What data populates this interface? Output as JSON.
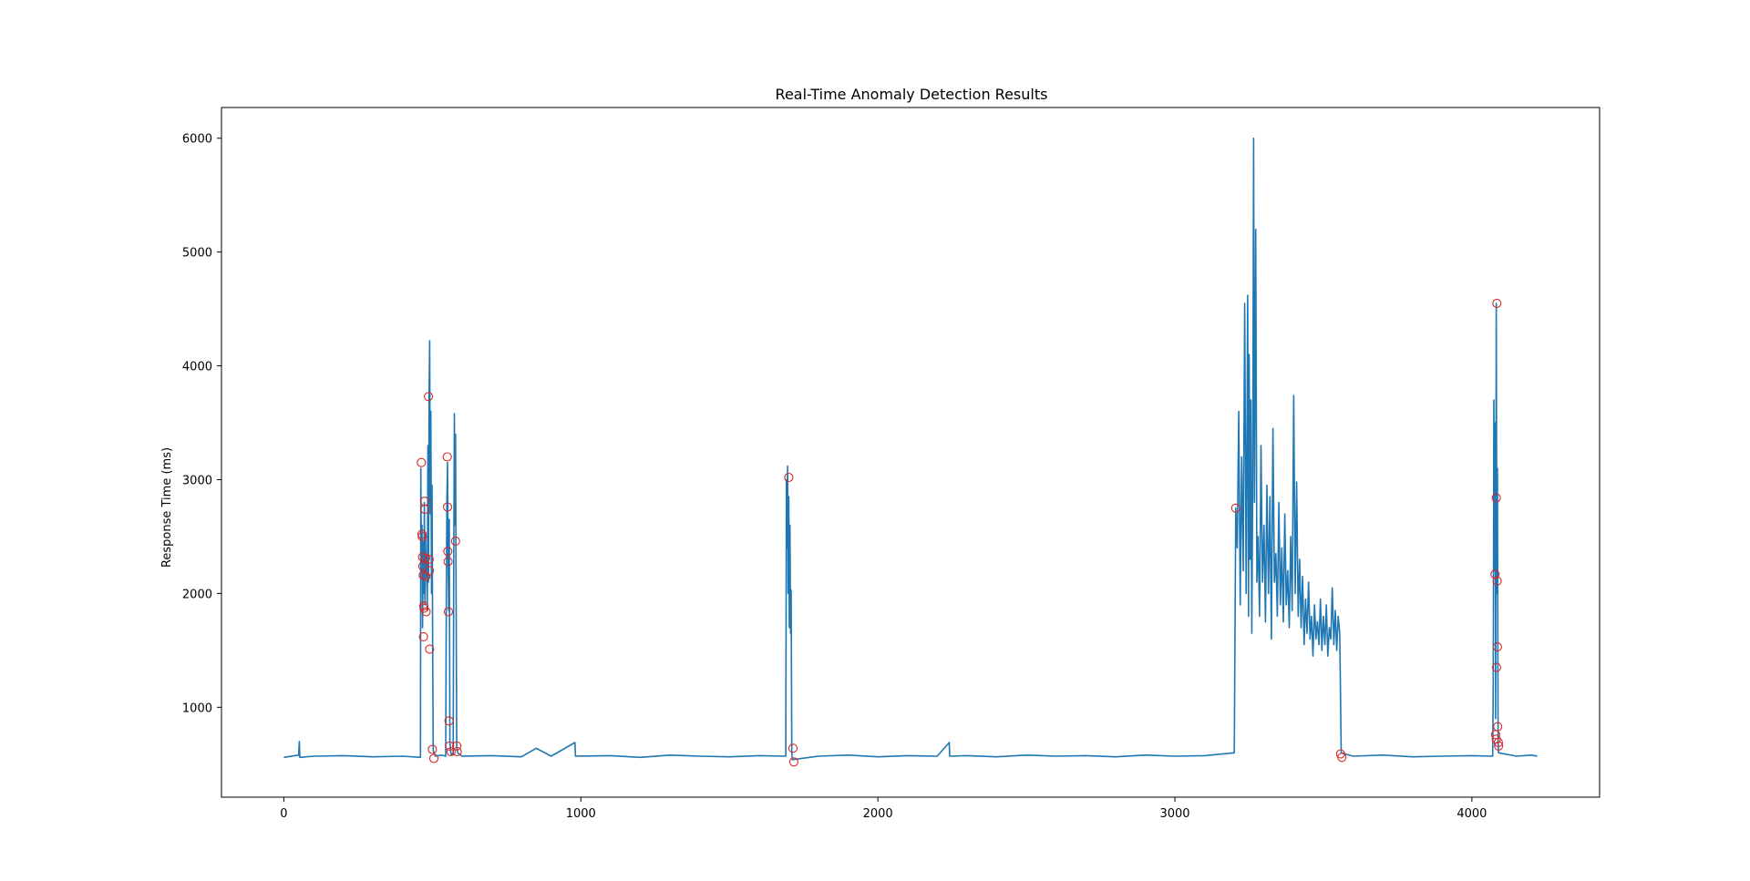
{
  "chart_data": {
    "type": "line",
    "title": "Real-Time Anomaly Detection Results",
    "xlabel": "",
    "ylabel": "Response Time (ms)",
    "xlim": [
      -210,
      4430
    ],
    "ylim": [
      210,
      6270
    ],
    "x_ticks": [
      0,
      1000,
      2000,
      3000,
      4000
    ],
    "y_ticks": [
      1000,
      2000,
      3000,
      4000,
      5000,
      6000
    ],
    "grid": false,
    "colors": {
      "line": "#1f77b4",
      "anomaly": "#d62728"
    },
    "series": [
      {
        "type": "line",
        "points": [
          [
            0,
            560
          ],
          [
            50,
            580
          ],
          [
            52,
            700
          ],
          [
            54,
            560
          ],
          [
            100,
            570
          ],
          [
            200,
            575
          ],
          [
            300,
            565
          ],
          [
            400,
            570
          ],
          [
            460,
            560
          ],
          [
            461,
            3100
          ],
          [
            463,
            2200
          ],
          [
            465,
            2600
          ],
          [
            467,
            1700
          ],
          [
            469,
            2450
          ],
          [
            471,
            2000
          ],
          [
            473,
            2800
          ],
          [
            475,
            1900
          ],
          [
            477,
            2500
          ],
          [
            479,
            2150
          ],
          [
            481,
            2300
          ],
          [
            483,
            1850
          ],
          [
            485,
            3300
          ],
          [
            487,
            2100
          ],
          [
            489,
            3750
          ],
          [
            491,
            4220
          ],
          [
            493,
            2700
          ],
          [
            495,
            3600
          ],
          [
            497,
            2000
          ],
          [
            499,
            2950
          ],
          [
            501,
            1500
          ],
          [
            503,
            620
          ],
          [
            510,
            570
          ],
          [
            530,
            580
          ],
          [
            545,
            570
          ],
          [
            547,
            2000
          ],
          [
            549,
            2800
          ],
          [
            551,
            3150
          ],
          [
            553,
            2300
          ],
          [
            555,
            1850
          ],
          [
            557,
            2650
          ],
          [
            559,
            700
          ],
          [
            562,
            600
          ],
          [
            565,
            580
          ],
          [
            570,
            600
          ],
          [
            572,
            2200
          ],
          [
            574,
            3580
          ],
          [
            576,
            2600
          ],
          [
            578,
            3400
          ],
          [
            580,
            2000
          ],
          [
            582,
            650
          ],
          [
            585,
            600
          ],
          [
            600,
            570
          ],
          [
            700,
            575
          ],
          [
            800,
            565
          ],
          [
            850,
            640
          ],
          [
            900,
            570
          ],
          [
            980,
            690
          ],
          [
            982,
            570
          ],
          [
            1100,
            575
          ],
          [
            1200,
            560
          ],
          [
            1300,
            580
          ],
          [
            1400,
            570
          ],
          [
            1500,
            565
          ],
          [
            1600,
            575
          ],
          [
            1690,
            570
          ],
          [
            1692,
            3000
          ],
          [
            1694,
            2400
          ],
          [
            1696,
            3120
          ],
          [
            1698,
            2000
          ],
          [
            1700,
            2850
          ],
          [
            1702,
            1700
          ],
          [
            1704,
            2600
          ],
          [
            1706,
            1650
          ],
          [
            1708,
            2030
          ],
          [
            1710,
            600
          ],
          [
            1712,
            540
          ],
          [
            1800,
            570
          ],
          [
            1900,
            580
          ],
          [
            2000,
            565
          ],
          [
            2100,
            575
          ],
          [
            2200,
            570
          ],
          [
            2240,
            690
          ],
          [
            2242,
            570
          ],
          [
            2300,
            575
          ],
          [
            2400,
            565
          ],
          [
            2500,
            580
          ],
          [
            2600,
            570
          ],
          [
            2700,
            575
          ],
          [
            2800,
            565
          ],
          [
            2900,
            580
          ],
          [
            3000,
            570
          ],
          [
            3100,
            575
          ],
          [
            3200,
            600
          ],
          [
            3205,
            2750
          ],
          [
            3210,
            2400
          ],
          [
            3215,
            3600
          ],
          [
            3220,
            1900
          ],
          [
            3225,
            3200
          ],
          [
            3230,
            2200
          ],
          [
            3235,
            4550
          ],
          [
            3240,
            2000
          ],
          [
            3245,
            4620
          ],
          [
            3248,
            1800
          ],
          [
            3250,
            4100
          ],
          [
            3253,
            2300
          ],
          [
            3256,
            3700
          ],
          [
            3259,
            1650
          ],
          [
            3262,
            3000
          ],
          [
            3265,
            6000
          ],
          [
            3268,
            2800
          ],
          [
            3272,
            5200
          ],
          [
            3276,
            2100
          ],
          [
            3280,
            2500
          ],
          [
            3285,
            1800
          ],
          [
            3290,
            3300
          ],
          [
            3295,
            2100
          ],
          [
            3300,
            2600
          ],
          [
            3305,
            1750
          ],
          [
            3310,
            2950
          ],
          [
            3315,
            2000
          ],
          [
            3320,
            2850
          ],
          [
            3325,
            1600
          ],
          [
            3330,
            3450
          ],
          [
            3335,
            2100
          ],
          [
            3340,
            2350
          ],
          [
            3345,
            1800
          ],
          [
            3350,
            2800
          ],
          [
            3355,
            1900
          ],
          [
            3360,
            2400
          ],
          [
            3365,
            1750
          ],
          [
            3370,
            2700
          ],
          [
            3375,
            1900
          ],
          [
            3380,
            2200
          ],
          [
            3385,
            1700
          ],
          [
            3390,
            2500
          ],
          [
            3395,
            1850
          ],
          [
            3400,
            3740
          ],
          [
            3405,
            2000
          ],
          [
            3410,
            2980
          ],
          [
            3415,
            1800
          ],
          [
            3420,
            2300
          ],
          [
            3425,
            1700
          ],
          [
            3430,
            2150
          ],
          [
            3435,
            1550
          ],
          [
            3440,
            1950
          ],
          [
            3445,
            1650
          ],
          [
            3450,
            2100
          ],
          [
            3455,
            1600
          ],
          [
            3460,
            1800
          ],
          [
            3465,
            1450
          ],
          [
            3470,
            1900
          ],
          [
            3475,
            1600
          ],
          [
            3480,
            1750
          ],
          [
            3485,
            1550
          ],
          [
            3490,
            1950
          ],
          [
            3495,
            1500
          ],
          [
            3500,
            1800
          ],
          [
            3505,
            1550
          ],
          [
            3510,
            1900
          ],
          [
            3515,
            1450
          ],
          [
            3520,
            1700
          ],
          [
            3525,
            1600
          ],
          [
            3530,
            2050
          ],
          [
            3535,
            1550
          ],
          [
            3540,
            1850
          ],
          [
            3545,
            1500
          ],
          [
            3550,
            1800
          ],
          [
            3555,
            1650
          ],
          [
            3560,
            600
          ],
          [
            3600,
            570
          ],
          [
            3700,
            580
          ],
          [
            3800,
            565
          ],
          [
            3900,
            570
          ],
          [
            4000,
            575
          ],
          [
            4070,
            570
          ],
          [
            4072,
            1200
          ],
          [
            4074,
            3700
          ],
          [
            4076,
            2200
          ],
          [
            4078,
            3500
          ],
          [
            4080,
            900
          ],
          [
            4082,
            4550
          ],
          [
            4084,
            2000
          ],
          [
            4086,
            3100
          ],
          [
            4088,
            700
          ],
          [
            4090,
            600
          ],
          [
            4150,
            570
          ],
          [
            4200,
            580
          ],
          [
            4220,
            570
          ]
        ]
      },
      {
        "type": "scatter",
        "marker": "circle-open",
        "points": [
          [
            463,
            3150
          ],
          [
            465,
            2520
          ],
          [
            466,
            2500
          ],
          [
            467,
            2320
          ],
          [
            468,
            2240
          ],
          [
            469,
            2160
          ],
          [
            471,
            1890
          ],
          [
            472,
            1870
          ],
          [
            470,
            1620
          ],
          [
            474,
            2810
          ],
          [
            475,
            2740
          ],
          [
            477,
            2310
          ],
          [
            478,
            2150
          ],
          [
            479,
            1840
          ],
          [
            487,
            3730
          ],
          [
            489,
            2300
          ],
          [
            490,
            2200
          ],
          [
            491,
            1510
          ],
          [
            500,
            630
          ],
          [
            505,
            550
          ],
          [
            550,
            3200
          ],
          [
            551,
            2760
          ],
          [
            552,
            2370
          ],
          [
            553,
            2280
          ],
          [
            554,
            1840
          ],
          [
            556,
            880
          ],
          [
            558,
            660
          ],
          [
            563,
            610
          ],
          [
            578,
            2460
          ],
          [
            582,
            660
          ],
          [
            584,
            610
          ],
          [
            1700,
            3020
          ],
          [
            1714,
            640
          ],
          [
            1717,
            520
          ],
          [
            3205,
            2750
          ],
          [
            3558,
            590
          ],
          [
            3562,
            560
          ],
          [
            4078,
            2170
          ],
          [
            4084,
            4550
          ],
          [
            4082,
            2840
          ],
          [
            4085,
            2110
          ],
          [
            4086,
            1530
          ],
          [
            4083,
            1350
          ],
          [
            4087,
            830
          ],
          [
            4080,
            760
          ],
          [
            4082,
            720
          ],
          [
            4089,
            690
          ],
          [
            4090,
            660
          ]
        ]
      }
    ]
  }
}
